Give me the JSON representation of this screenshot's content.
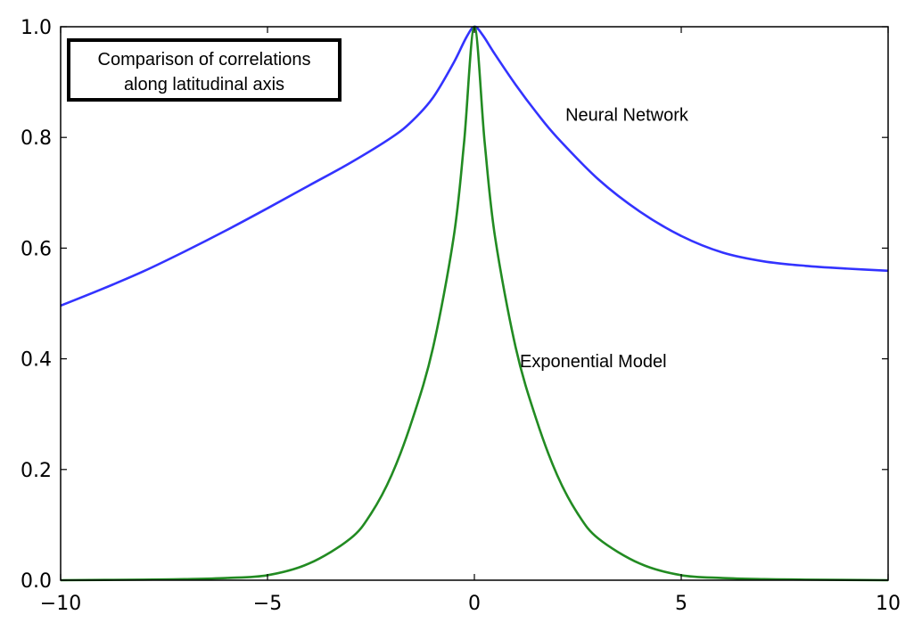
{
  "chart_data": {
    "type": "line",
    "title": "Comparison of correlations along latitudinal axis",
    "title_lines": [
      "Comparison of correlations",
      "along latitudinal axis"
    ],
    "xlabel": "",
    "ylabel": "",
    "xlim": [
      -10,
      10
    ],
    "ylim": [
      0.0,
      1.0
    ],
    "xticks": [
      -10,
      -5,
      0,
      5,
      10
    ],
    "xtick_labels": [
      "−10",
      "−5",
      "0",
      "5",
      "10"
    ],
    "yticks": [
      0.0,
      0.2,
      0.4,
      0.6,
      0.8,
      1.0
    ],
    "ytick_labels": [
      "0.0",
      "0.2",
      "0.4",
      "0.6",
      "0.8",
      "1.0"
    ],
    "grid": false,
    "legend": "none",
    "series": [
      {
        "name": "Neural Network",
        "color": "#3333ff",
        "x": [
          -10,
          -9,
          -8,
          -7,
          -6,
          -5,
          -4,
          -3,
          -2,
          -1.5,
          -1,
          -0.5,
          -0.2,
          0,
          0.2,
          0.5,
          1,
          1.5,
          2,
          3,
          4,
          5,
          6,
          7,
          8,
          9,
          10
        ],
        "y": [
          0.496,
          0.526,
          0.558,
          0.594,
          0.632,
          0.672,
          0.713,
          0.754,
          0.8,
          0.83,
          0.872,
          0.935,
          0.98,
          1.0,
          0.985,
          0.95,
          0.895,
          0.845,
          0.8,
          0.724,
          0.666,
          0.622,
          0.592,
          0.576,
          0.568,
          0.563,
          0.559
        ]
      },
      {
        "name": "Exponential Model",
        "color": "#228b22",
        "x": [
          -10,
          -8,
          -7,
          -6,
          -5,
          -4,
          -3,
          -2.5,
          -2,
          -1.5,
          -1,
          -0.5,
          -0.25,
          0,
          0.25,
          0.5,
          1,
          1.5,
          2,
          2.5,
          3,
          4,
          5,
          6,
          7,
          8,
          10
        ],
        "y": [
          0.0,
          0.001,
          0.002,
          0.004,
          0.009,
          0.03,
          0.075,
          0.12,
          0.19,
          0.29,
          0.42,
          0.62,
          0.79,
          1.0,
          0.79,
          0.62,
          0.42,
          0.29,
          0.19,
          0.12,
          0.075,
          0.03,
          0.009,
          0.004,
          0.002,
          0.001,
          0.0
        ]
      }
    ],
    "annotations": [
      {
        "text": "Neural Network",
        "x": 2.2,
        "y": 0.83
      },
      {
        "text": "Exponential Model",
        "x": 1.1,
        "y": 0.385
      }
    ]
  }
}
